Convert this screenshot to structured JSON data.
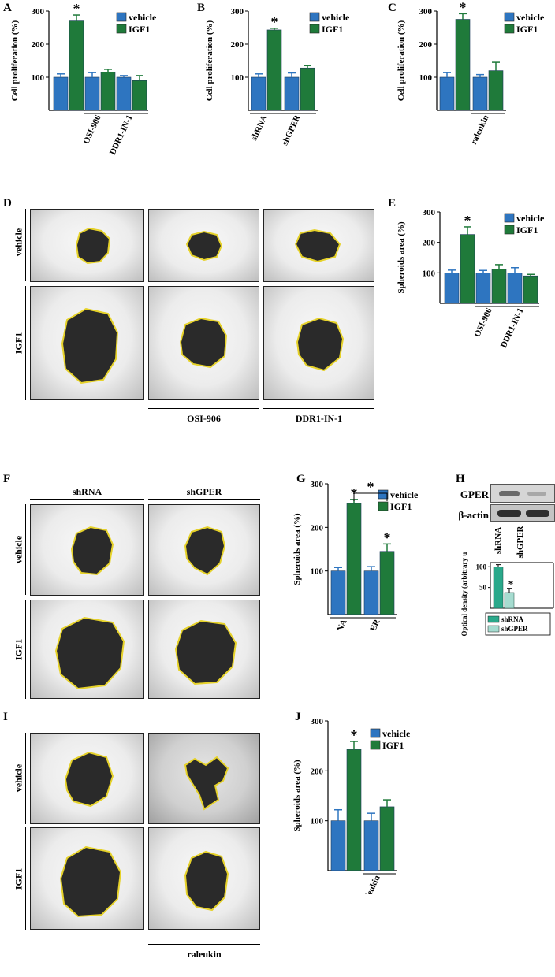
{
  "panel_letters": {
    "A": "A",
    "B": "B",
    "C": "C",
    "D": "D",
    "E": "E",
    "F": "F",
    "G": "G",
    "H": "H",
    "I": "I",
    "J": "J"
  },
  "legend": {
    "vehicle": "vehicle",
    "igf1": "IGF1"
  },
  "colors": {
    "vehicle": "#2e75c0",
    "igf1": "#1f7a3a",
    "shrna": "#2aa88a",
    "shgper": "#a6dcd0"
  },
  "star": "*",
  "ylabel_prolif": "Cell proliferation (%)",
  "ylabel_spheroid": "Spheroids area (%)",
  "ylabel_od": "Optical density (arbitrary units %)",
  "row_labels": {
    "vehicle": "vehicle",
    "igf1": "IGF1"
  },
  "photo_labels": {
    "osi": "OSI-906",
    "ddr": "DDR1-IN-1",
    "shrna": "shRNA",
    "shgper": "shGPER",
    "raleukin": "raleukin"
  },
  "blot": {
    "gper": "GPER",
    "actin": "β-actin",
    "lane1": "shRNA",
    "lane2": "shGPER"
  },
  "chart_data": [
    {
      "panel": "A",
      "type": "bar",
      "ylabel": "Cell proliferation (%)",
      "yticks": [
        100,
        200,
        300
      ],
      "groups": [
        "",
        "OSI-906",
        "DDR1-IN-1"
      ],
      "series": [
        {
          "name": "vehicle",
          "values": [
            100,
            100,
            100
          ],
          "err": [
            10,
            14,
            5
          ]
        },
        {
          "name": "IGF1",
          "values": [
            270,
            115,
            90
          ],
          "err": [
            18,
            9,
            15
          ]
        }
      ],
      "sig": [
        "*",
        "",
        ""
      ]
    },
    {
      "panel": "B",
      "type": "bar",
      "ylabel": "Cell proliferation (%)",
      "yticks": [
        100,
        200,
        300
      ],
      "groups": [
        "shRNA",
        "shGPER"
      ],
      "series": [
        {
          "name": "vehicle",
          "values": [
            100,
            100
          ],
          "err": [
            10,
            13
          ]
        },
        {
          "name": "IGF1",
          "values": [
            243,
            128
          ],
          "err": [
            5,
            7
          ]
        }
      ],
      "sig": [
        "*",
        ""
      ]
    },
    {
      "panel": "C",
      "type": "bar",
      "ylabel": "Cell proliferation (%)",
      "yticks": [
        100,
        200,
        300
      ],
      "groups": [
        "",
        "raleukin"
      ],
      "series": [
        {
          "name": "vehicle",
          "values": [
            100,
            100
          ],
          "err": [
            14,
            8
          ]
        },
        {
          "name": "IGF1",
          "values": [
            275,
            120
          ],
          "err": [
            17,
            25
          ]
        }
      ],
      "sig": [
        "*",
        ""
      ]
    },
    {
      "panel": "E",
      "type": "bar",
      "ylabel": "Spheroids area (%)",
      "yticks": [
        100,
        200,
        300
      ],
      "groups": [
        "",
        "OSI-906",
        "DDR1-IN-1"
      ],
      "series": [
        {
          "name": "vehicle",
          "values": [
            100,
            100,
            100
          ],
          "err": [
            9,
            8,
            17
          ]
        },
        {
          "name": "IGF1",
          "values": [
            226,
            112,
            90
          ],
          "err": [
            25,
            15,
            5
          ]
        }
      ],
      "sig": [
        "*",
        "",
        ""
      ]
    },
    {
      "panel": "G",
      "type": "bar",
      "ylabel": "Spheroids area (%)",
      "yticks": [
        100,
        200,
        300
      ],
      "groups": [
        "shRNA",
        "shGPER"
      ],
      "series": [
        {
          "name": "vehicle",
          "values": [
            100,
            100
          ],
          "err": [
            8,
            10
          ]
        },
        {
          "name": "IGF1",
          "values": [
            255,
            145
          ],
          "err": [
            9,
            17
          ]
        }
      ],
      "sig": [
        "*",
        "*"
      ],
      "bracket": "*"
    },
    {
      "panel": "H",
      "type": "bar",
      "ylabel": "Optical density (arbitrary units %)",
      "yticks": [
        100,
        50
      ],
      "groups": [
        "shRNA",
        "shGPER"
      ],
      "series": [
        {
          "name": "shRNA",
          "values": [
            100
          ],
          "err": [
            5
          ]
        },
        {
          "name": "shGPER",
          "values": [
            38
          ],
          "err": [
            10
          ]
        }
      ],
      "sig": [
        "",
        "*"
      ]
    },
    {
      "panel": "J",
      "type": "bar",
      "ylabel": "Spheroids area (%)",
      "yticks": [
        100,
        200,
        300
      ],
      "groups": [
        "",
        "raleukin"
      ],
      "series": [
        {
          "name": "vehicle",
          "values": [
            100,
            100
          ],
          "err": [
            22,
            15
          ]
        },
        {
          "name": "IGF1",
          "values": [
            243,
            128
          ],
          "err": [
            16,
            14
          ]
        }
      ],
      "sig": [
        "*",
        ""
      ]
    }
  ]
}
